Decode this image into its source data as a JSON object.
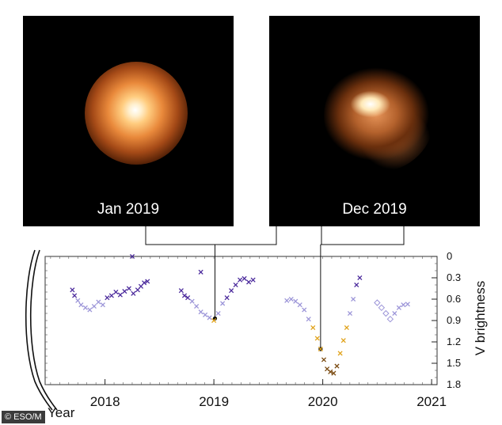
{
  "panels": [
    {
      "caption": "Jan 2019"
    },
    {
      "caption": "Dec 2019"
    }
  ],
  "watermark": "© ESO/M",
  "colors": {
    "early": "#4b2a9c",
    "mid": "#9c95d8",
    "dim": "#e0a21a",
    "faint": "#7a4a10"
  },
  "chart_data": {
    "type": "scatter",
    "xlabel": "Year",
    "ylabel": "V brightness",
    "xlim": [
      2017.45,
      2021.05
    ],
    "ylim": [
      0,
      1.8
    ],
    "y_inverted": true,
    "x_ticks": [
      2018,
      2019,
      2020,
      2021
    ],
    "y_ticks": [
      "0",
      "0.3",
      "0.6",
      "0.9",
      "1.2",
      "1.5",
      "1.8"
    ],
    "marker": "x",
    "series": [
      {
        "x": [
          2017.7,
          2017.72,
          2017.75,
          2017.78,
          2017.82,
          2017.86,
          2017.9,
          2017.94,
          2017.98,
          2018.02,
          2018.06,
          2018.1,
          2018.14,
          2018.18,
          2018.22,
          2018.26,
          2018.3,
          2018.33,
          2018.36,
          2018.39,
          2018.25
        ],
        "y": [
          0.47,
          0.55,
          0.62,
          0.68,
          0.72,
          0.75,
          0.7,
          0.64,
          0.68,
          0.58,
          0.55,
          0.5,
          0.54,
          0.49,
          0.45,
          0.52,
          0.47,
          0.42,
          0.37,
          0.35,
          0.0
        ]
      },
      {
        "x": [
          2018.7,
          2018.73,
          2018.76,
          2018.8,
          2018.84,
          2018.88,
          2018.92,
          2018.96,
          2019.0,
          2019.04,
          2019.08,
          2019.12,
          2019.16,
          2019.2,
          2019.24,
          2019.28,
          2019.32,
          2019.36,
          2018.88
        ],
        "y": [
          0.48,
          0.55,
          0.58,
          0.63,
          0.7,
          0.78,
          0.82,
          0.86,
          0.9,
          0.8,
          0.66,
          0.58,
          0.48,
          0.4,
          0.33,
          0.31,
          0.36,
          0.33,
          0.22
        ]
      },
      {
        "x": [
          2019.67,
          2019.71,
          2019.75,
          2019.79,
          2019.83,
          2019.87,
          2019.91,
          2019.95,
          2019.98,
          2020.01,
          2020.04,
          2020.07,
          2020.1,
          2020.13,
          2020.16,
          2020.19,
          2020.22,
          2020.25,
          2020.28,
          2020.31,
          2020.34
        ],
        "y": [
          0.62,
          0.6,
          0.63,
          0.68,
          0.75,
          0.88,
          1.0,
          1.15,
          1.3,
          1.45,
          1.58,
          1.62,
          1.64,
          1.54,
          1.36,
          1.18,
          1.0,
          0.8,
          0.6,
          0.4,
          0.3
        ]
      },
      {
        "x": [
          2020.5,
          2020.54,
          2020.58,
          2020.62,
          2020.66,
          2020.7,
          2020.74,
          2020.78
        ],
        "y": [
          0.65,
          0.72,
          0.8,
          0.88,
          0.8,
          0.72,
          0.68,
          0.67
        ]
      }
    ],
    "callouts": [
      {
        "x": 2019.01,
        "y": 0.87,
        "panel": 0
      },
      {
        "x": 2019.98,
        "y": 1.3,
        "panel": 1
      }
    ]
  }
}
